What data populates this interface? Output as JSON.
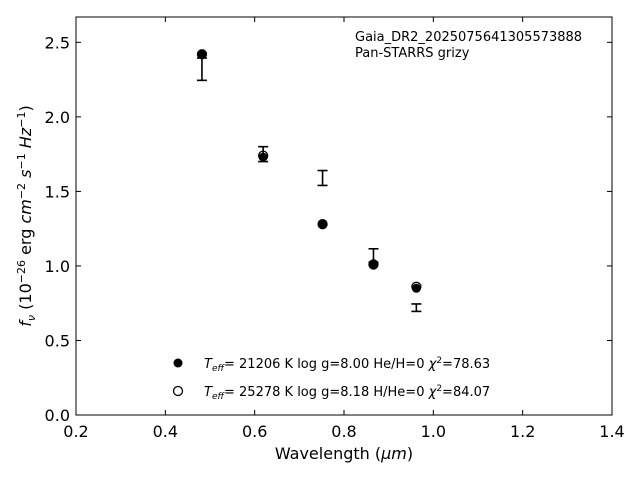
{
  "chart_data": {
    "type": "scatter",
    "xlabel": "Wavelength (μm)",
    "ylabel": "f_ν (10^{-26} erg cm^{-2} s^{-1} Hz^{-1})",
    "xlim": [
      0.2,
      1.4
    ],
    "ylim": [
      0.0,
      2.67
    ],
    "xticks": [
      "0.2",
      "0.4",
      "0.6",
      "0.8",
      "1.0",
      "1.2",
      "1.4"
    ],
    "yticks": [
      "0.0",
      "0.5",
      "1.0",
      "1.5",
      "2.0",
      "2.5"
    ],
    "annotations": [
      "Gaia_DR2_2025075641305573888",
      "Pan-STARRS grizy"
    ],
    "grid": false,
    "legend_position": "bottom-center",
    "observed": {
      "x": [
        0.482,
        0.619,
        0.752,
        0.866,
        0.962
      ],
      "y": [
        2.32,
        1.75,
        1.59,
        1.07,
        0.72
      ],
      "yerr": [
        0.075,
        0.05,
        0.05,
        0.045,
        0.025
      ]
    },
    "series": [
      {
        "name": "T_eff= 21206 K  log g=8.00  He/H=0  χ²=78.63",
        "marker": "filled-circle",
        "x": [
          0.482,
          0.619,
          0.752,
          0.866,
          0.962
        ],
        "y": [
          2.42,
          1.73,
          1.28,
          1.01,
          0.85
        ]
      },
      {
        "name": "T_eff= 25278 K  log g=8.18  H/He=0  χ²=84.07",
        "marker": "open-circle",
        "x": [
          0.482,
          0.619,
          0.752,
          0.866,
          0.962
        ],
        "y": [
          2.42,
          1.74,
          1.28,
          1.01,
          0.86
        ]
      }
    ],
    "legend": {
      "entries": [
        {
          "teff": "21206",
          "logg": "log g=8.00",
          "comp": "He/H=0",
          "chi": "=78.63"
        },
        {
          "teff": "25278",
          "logg": "log g=8.18",
          "comp": "H/He=0",
          "chi": "=84.07"
        }
      ]
    }
  }
}
